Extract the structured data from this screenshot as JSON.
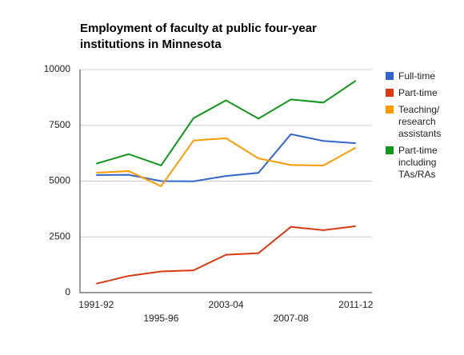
{
  "chart_data": {
    "type": "line",
    "title": "Employment of faculty at public four-year institutions in Minnesota",
    "categories": [
      "1991-92",
      null,
      "1995-96",
      null,
      "2003-04",
      null,
      "2007-08",
      null,
      "2011-12"
    ],
    "series": [
      {
        "name": "Full-time",
        "color": "#3366cc",
        "values": [
          5270,
          5280,
          5000,
          4990,
          5230,
          5370,
          7100,
          6800,
          6700
        ]
      },
      {
        "name": "Part-time",
        "color": "#dc3912",
        "values": [
          400,
          750,
          950,
          1000,
          1700,
          1770,
          2950,
          2800,
          2980
        ]
      },
      {
        "name": "Teaching/ research assistants",
        "color": "#ff9900",
        "values": [
          5370,
          5450,
          4770,
          6820,
          6920,
          6020,
          5720,
          5700,
          6500
        ]
      },
      {
        "name": "Part-time including TAs/RAs",
        "color": "#109618",
        "values": [
          5780,
          6210,
          5700,
          7820,
          8620,
          7800,
          8660,
          8520,
          9500
        ]
      }
    ],
    "ylim": [
      0,
      10000
    ],
    "yticks": [
      0,
      2500,
      5000,
      7500,
      10000
    ],
    "grid": true
  }
}
